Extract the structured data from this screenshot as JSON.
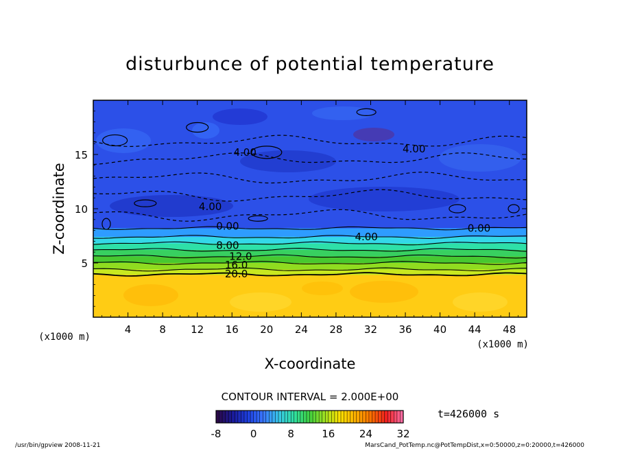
{
  "chart_data": {
    "type": "heatmap",
    "title": "disturbunce of potential temperature",
    "xlabel": "X-coordinate",
    "ylabel": "Z-coordinate",
    "x_unit": "(x1000 m)",
    "z_unit": "(x1000 m)",
    "xlim": [
      0,
      50
    ],
    "zlim": [
      0,
      20
    ],
    "x_ticks": [
      4,
      8,
      12,
      16,
      20,
      24,
      28,
      32,
      36,
      40,
      44,
      48
    ],
    "z_ticks": [
      5,
      10,
      15
    ],
    "contour_interval_text": "CONTOUR INTERVAL = 2.000E+00",
    "time_text": "t=426000 s",
    "colorbar": {
      "min": -8,
      "max": 32,
      "ticks": [
        -8,
        0,
        8,
        16,
        24,
        32
      ],
      "colors": [
        "#2a0a4a",
        "#1a1a9a",
        "#1e40e0",
        "#3a78ff",
        "#38c8e8",
        "#30e0a0",
        "#40d040",
        "#a0e020",
        "#ffe000",
        "#ffb000",
        "#ff7000",
        "#f02020",
        "#ff6aa0"
      ]
    },
    "field_bands": [
      {
        "z_top": 20,
        "z_bottom": 8.2,
        "value": -4,
        "color": "#2c50e8"
      },
      {
        "z_top": 8.2,
        "z_bottom": 7.4,
        "value": 2,
        "color": "#2e9cff"
      },
      {
        "z_top": 7.4,
        "z_bottom": 6.8,
        "value": 6,
        "color": "#34d8e8"
      },
      {
        "z_top": 6.8,
        "z_bottom": 6.2,
        "value": 9,
        "color": "#2ee0a8"
      },
      {
        "z_top": 6.2,
        "z_bottom": 5.6,
        "value": 12,
        "color": "#38d060"
      },
      {
        "z_top": 5.6,
        "z_bottom": 5.0,
        "value": 14,
        "color": "#48c830"
      },
      {
        "z_top": 5.0,
        "z_bottom": 4.4,
        "value": 17,
        "color": "#90dc20"
      },
      {
        "z_top": 4.4,
        "z_bottom": 3.9,
        "value": 19,
        "color": "#c8e820"
      },
      {
        "z_top": 3.9,
        "z_bottom": 0,
        "value": 21,
        "color": "#ffcc14"
      }
    ],
    "contour_labels": [
      {
        "text": "4.00",
        "x": 17.5,
        "z": 15.2
      },
      {
        "text": "4.00",
        "x": 37.0,
        "z": 15.5
      },
      {
        "text": "4.00",
        "x": 13.5,
        "z": 10.2
      },
      {
        "text": "0.00",
        "x": 15.5,
        "z": 8.4
      },
      {
        "text": "0.00",
        "x": 44.5,
        "z": 8.2
      },
      {
        "text": "4.00",
        "x": 31.5,
        "z": 7.4
      },
      {
        "text": "8.00",
        "x": 15.5,
        "z": 6.6
      },
      {
        "text": "12.0",
        "x": 17.0,
        "z": 5.6
      },
      {
        "text": "16.0",
        "x": 16.5,
        "z": 4.8
      },
      {
        "text": "20.0",
        "x": 16.5,
        "z": 4.0
      }
    ]
  },
  "footer": {
    "left": "/usr/bin/gpview   2008-11-21",
    "right": "MarsCand_PotTemp.nc@PotTempDist,x=0:50000,z=0:20000,t=426000"
  }
}
